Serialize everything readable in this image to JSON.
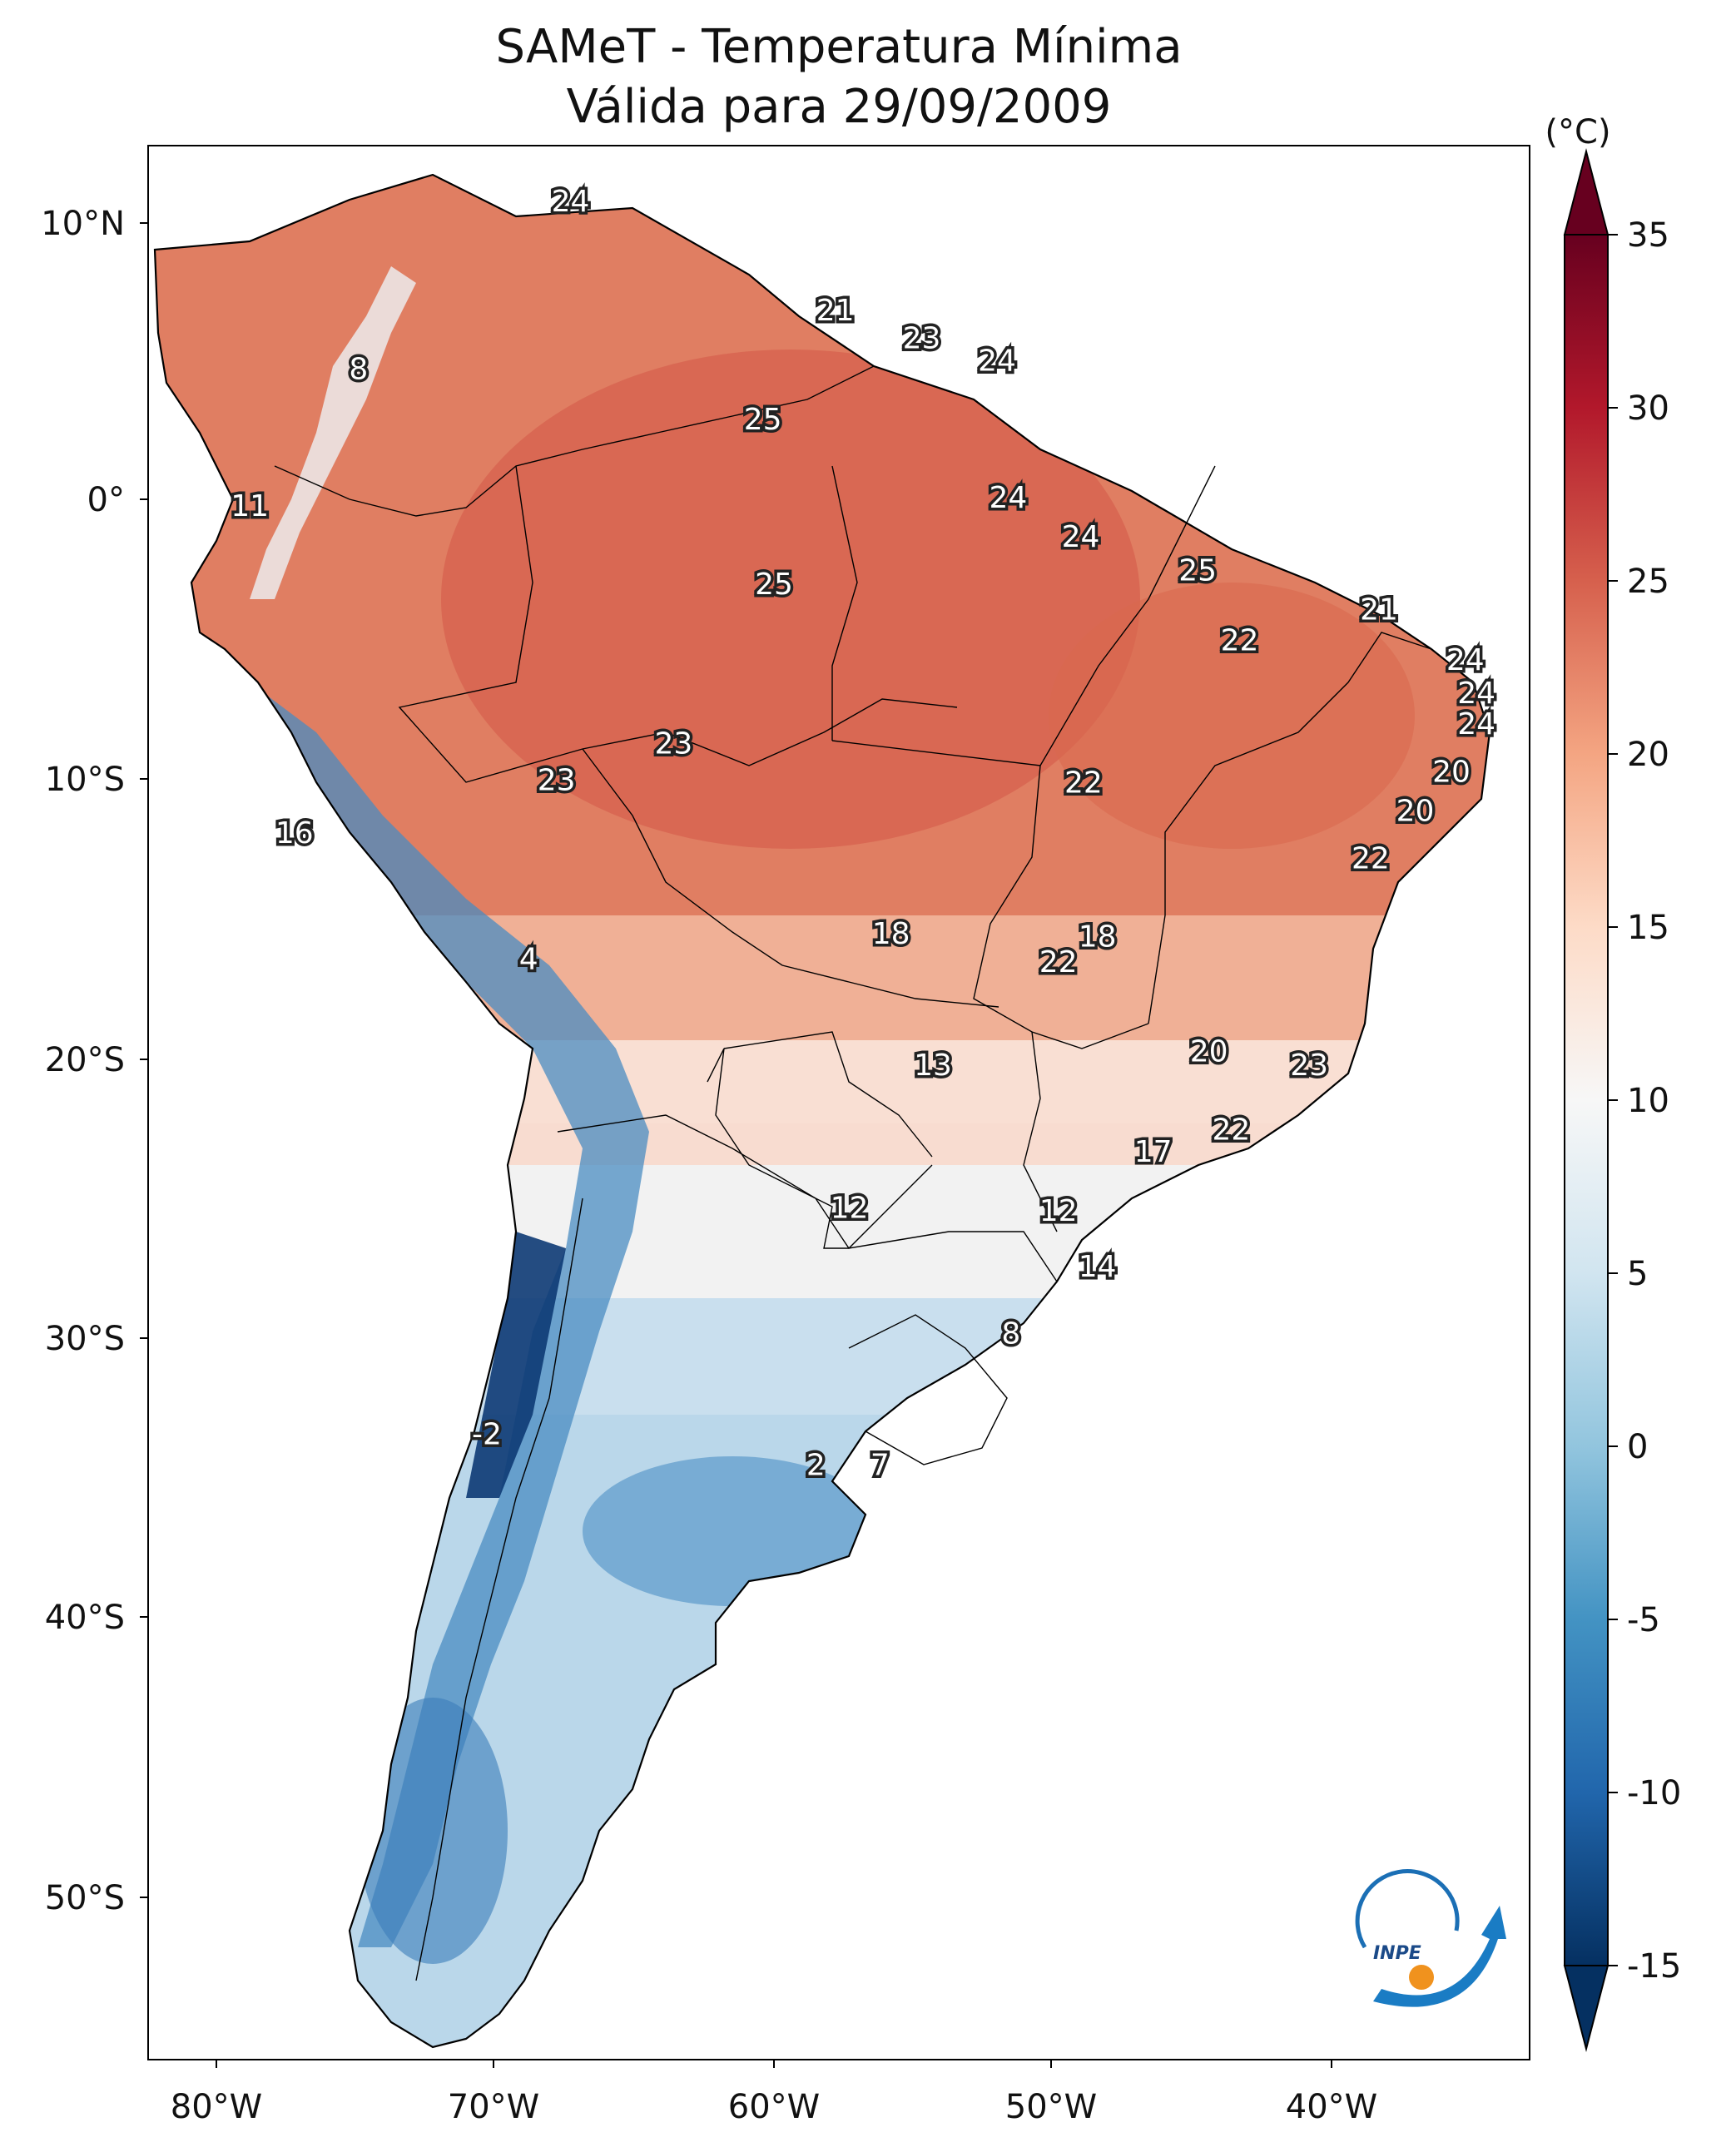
{
  "title": {
    "line1": "SAMeT - Temperatura Mínima",
    "line2": "Válida para 29/09/2009"
  },
  "colorbar": {
    "unit": "(°C)",
    "min": -15,
    "max": 35,
    "ticks": [
      "35",
      "30",
      "25",
      "20",
      "15",
      "10",
      "5",
      "0",
      "-5",
      "-10",
      "-15"
    ],
    "colors": [
      "#053061",
      "#2166ac",
      "#4393c3",
      "#92c5de",
      "#d1e5f0",
      "#f7f7f7",
      "#fddbc7",
      "#f4a582",
      "#d6604d",
      "#b2182b",
      "#67001f"
    ]
  },
  "axes": {
    "lon_ticks": [
      "80°W",
      "70°W",
      "60°W",
      "50°W",
      "40°W"
    ],
    "lat_ticks": [
      "10°N",
      "0°",
      "10°S",
      "20°S",
      "30°S",
      "40°S",
      "50°S"
    ]
  },
  "map_labels": [
    {
      "text": "24",
      "lon": -67.3,
      "lat": 10.6
    },
    {
      "text": "21",
      "lon": -57.8,
      "lat": 6.7
    },
    {
      "text": "23",
      "lon": -54.7,
      "lat": 5.7
    },
    {
      "text": "24",
      "lon": -52.0,
      "lat": 4.9
    },
    {
      "text": "8",
      "lon": -74.9,
      "lat": 4.6
    },
    {
      "text": "25",
      "lon": -60.4,
      "lat": 2.8
    },
    {
      "text": "11",
      "lon": -78.8,
      "lat": -0.3
    },
    {
      "text": "24",
      "lon": -51.6,
      "lat": 0.0
    },
    {
      "text": "24",
      "lon": -49.0,
      "lat": -1.4
    },
    {
      "text": "25",
      "lon": -60.0,
      "lat": -3.1
    },
    {
      "text": "25",
      "lon": -44.8,
      "lat": -2.6
    },
    {
      "text": "21",
      "lon": -38.3,
      "lat": -4.0
    },
    {
      "text": "22",
      "lon": -43.3,
      "lat": -5.1
    },
    {
      "text": "24",
      "lon": -35.2,
      "lat": -5.8
    },
    {
      "text": "24",
      "lon": -34.8,
      "lat": -7.0
    },
    {
      "text": "24",
      "lon": -34.8,
      "lat": -8.1
    },
    {
      "text": "23",
      "lon": -63.6,
      "lat": -8.8
    },
    {
      "text": "23",
      "lon": -67.8,
      "lat": -10.1
    },
    {
      "text": "22",
      "lon": -48.9,
      "lat": -10.2
    },
    {
      "text": "20",
      "lon": -35.7,
      "lat": -9.8
    },
    {
      "text": "20",
      "lon": -37.0,
      "lat": -11.2
    },
    {
      "text": "16",
      "lon": -77.2,
      "lat": -12.0
    },
    {
      "text": "22",
      "lon": -38.6,
      "lat": -12.9
    },
    {
      "text": "18",
      "lon": -55.8,
      "lat": -15.6
    },
    {
      "text": "18",
      "lon": -48.4,
      "lat": -15.7
    },
    {
      "text": "22",
      "lon": -49.8,
      "lat": -16.6
    },
    {
      "text": "4",
      "lon": -68.8,
      "lat": -16.5
    },
    {
      "text": "20",
      "lon": -44.4,
      "lat": -19.8
    },
    {
      "text": "23",
      "lon": -40.8,
      "lat": -20.3
    },
    {
      "text": "13",
      "lon": -54.3,
      "lat": -20.3
    },
    {
      "text": "22",
      "lon": -43.6,
      "lat": -22.6
    },
    {
      "text": "17",
      "lon": -46.4,
      "lat": -23.4
    },
    {
      "text": "12",
      "lon": -57.3,
      "lat": -25.4
    },
    {
      "text": "12",
      "lon": -49.8,
      "lat": -25.5
    },
    {
      "text": "14",
      "lon": -48.4,
      "lat": -27.5
    },
    {
      "text": "8",
      "lon": -51.5,
      "lat": -29.9
    },
    {
      "text": "-2",
      "lon": -70.3,
      "lat": -33.5
    },
    {
      "text": "2",
      "lon": -58.5,
      "lat": -34.6
    },
    {
      "text": "7",
      "lon": -56.2,
      "lat": -34.6
    }
  ],
  "logo": {
    "text": "INPE"
  }
}
